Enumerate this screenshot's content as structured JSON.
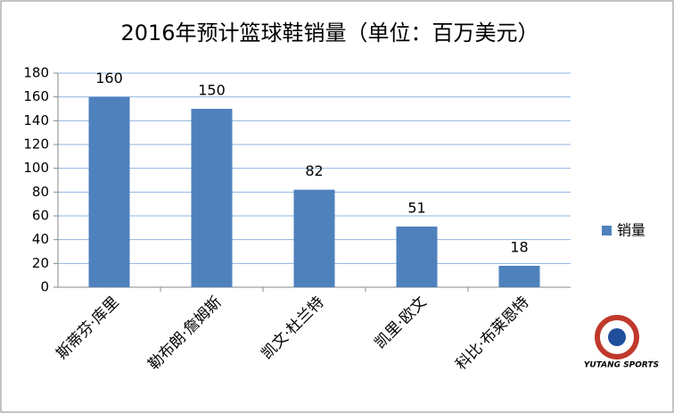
{
  "chart_data": {
    "type": "bar",
    "title": "2016年预计篮球鞋销量（单位：百万美元）",
    "categories": [
      "斯蒂芬·库里",
      "勒布朗·詹姆斯",
      "凯文·杜兰特",
      "凯里·欧文",
      "科比·布莱恩特"
    ],
    "series": [
      {
        "name": "销量",
        "color": "#4f81bd",
        "values": [
          160,
          150,
          82,
          51,
          18
        ]
      }
    ],
    "ylim": [
      0,
      180
    ],
    "yticks": [
      0,
      20,
      40,
      60,
      80,
      100,
      120,
      140,
      160,
      180
    ],
    "grid": true,
    "legend": "right",
    "watermark": "YUTANG SPORTS"
  }
}
